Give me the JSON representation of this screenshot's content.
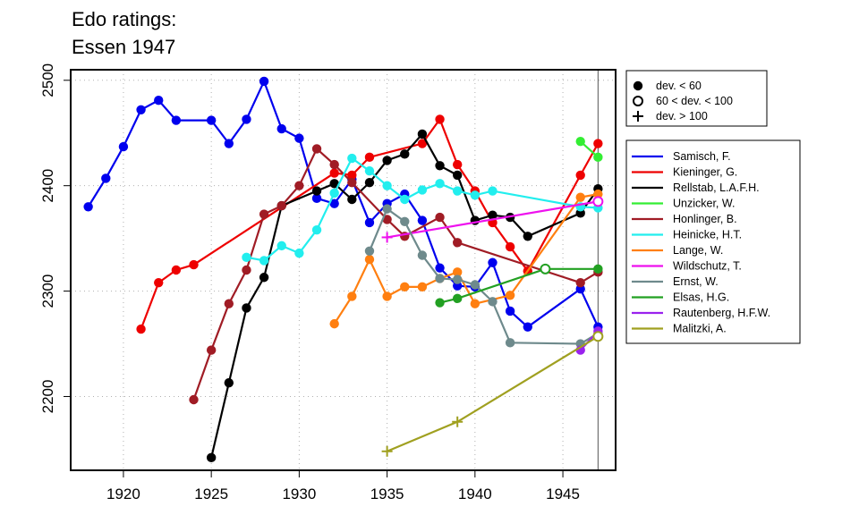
{
  "chart_data": {
    "type": "line",
    "title": "Edo ratings:",
    "subtitle": "Essen 1947",
    "xlabel": "",
    "ylabel": "",
    "xlim": [
      1917,
      1948
    ],
    "ylim": [
      2130,
      2510
    ],
    "x_ticks": [
      "1920",
      "1925",
      "1930",
      "1935",
      "1940",
      "1945"
    ],
    "y_ticks": [
      "2200",
      "2300",
      "2400",
      "2500"
    ],
    "grid": true,
    "marker_legend_position": "top-right outside",
    "series_legend_position": "right outside",
    "reference_line_x": 1947,
    "marker_legend": [
      {
        "label": "dev. < 60",
        "marker": "filled-circle"
      },
      {
        "label": "60 < dev. < 100",
        "marker": "open-circle"
      },
      {
        "label": "dev. > 100",
        "marker": "plus"
      }
    ],
    "series": [
      {
        "name": "Samisch, F.",
        "color": "#0000ee",
        "marker": "filled-circle",
        "x": [
          1918,
          1919,
          1920,
          1921,
          1922,
          1923,
          1925,
          1926,
          1927,
          1928,
          1929,
          1930,
          1931,
          1932,
          1933,
          1934,
          1935,
          1936,
          1937,
          1938,
          1939,
          1940,
          1941,
          1942,
          1943,
          1946,
          1947
        ],
        "y": [
          2380,
          2407,
          2437,
          2472,
          2481,
          2462,
          2462,
          2440,
          2463,
          2499,
          2454,
          2445,
          2388,
          2383,
          2406,
          2365,
          2383,
          2392,
          2367,
          2322,
          2305,
          2304,
          2327,
          2281,
          2266,
          2302,
          2266
        ]
      },
      {
        "name": "Kieninger, G.",
        "color": "#ee0000",
        "marker": "filled-circle",
        "x": [
          1921,
          1922,
          1923,
          1924,
          1932,
          1933,
          1934,
          1937,
          1938,
          1939,
          1940,
          1941,
          1942,
          1943,
          1946,
          1947
        ],
        "y": [
          2264,
          2308,
          2320,
          2325,
          2412,
          2410,
          2427,
          2440,
          2463,
          2420,
          2395,
          2365,
          2342,
          2319,
          2410,
          2440
        ]
      },
      {
        "name": "Rellstab, L.A.F.H.",
        "color": "#000000",
        "marker": "filled-circle",
        "x": [
          1925,
          1926,
          1927,
          1928,
          1929,
          1931,
          1932,
          1933,
          1934,
          1935,
          1936,
          1937,
          1938,
          1939,
          1940,
          1941,
          1942,
          1943,
          1946,
          1947
        ],
        "y": [
          2142,
          2213,
          2284,
          2313,
          2381,
          2395,
          2402,
          2387,
          2403,
          2424,
          2430,
          2449,
          2419,
          2410,
          2367,
          2372,
          2370,
          2352,
          2374,
          2397
        ]
      },
      {
        "name": "Unzicker, W.",
        "color": "#33ee33",
        "marker": "filled-circle",
        "x": [
          1946,
          1947
        ],
        "y": [
          2442,
          2427
        ]
      },
      {
        "name": "Honlinger, B.",
        "color": "#a01c25",
        "marker": "filled-circle",
        "x": [
          1924,
          1925,
          1926,
          1927,
          1928,
          1929,
          1930,
          1931,
          1932,
          1933,
          1935,
          1936,
          1938,
          1939,
          1946,
          1947
        ],
        "y": [
          2197,
          2244,
          2288,
          2320,
          2373,
          2381,
          2400,
          2435,
          2420,
          2403,
          2368,
          2352,
          2370,
          2346,
          2308,
          2318
        ]
      },
      {
        "name": "Heinicke, H.T.",
        "color": "#22eeee",
        "marker": "filled-circle",
        "x": [
          1927,
          1928,
          1929,
          1930,
          1931,
          1932,
          1933,
          1934,
          1935,
          1936,
          1937,
          1938,
          1939,
          1940,
          1941,
          1946,
          1947
        ],
        "y": [
          2332,
          2329,
          2343,
          2336,
          2358,
          2393,
          2426,
          2414,
          2400,
          2387,
          2396,
          2402,
          2395,
          2391,
          2395,
          2380,
          2379
        ]
      },
      {
        "name": "Lange, W.",
        "color": "#ff7f10",
        "marker": "filled-circle",
        "x": [
          1932,
          1933,
          1934,
          1935,
          1936,
          1937,
          1938,
          1939,
          1940,
          1942,
          1946,
          1947
        ],
        "y": [
          2269,
          2295,
          2330,
          2295,
          2304,
          2304,
          2312,
          2318,
          2288,
          2296,
          2389,
          2392
        ]
      },
      {
        "name": "Wildschutz, T.",
        "color": "#ee11ee",
        "marker": "plus",
        "x": [
          1935,
          1947
        ],
        "y": [
          2351,
          2385
        ],
        "last_marker": "open-circle"
      },
      {
        "name": "Ernst, W.",
        "color": "#6e8a8c",
        "marker": "filled-circle",
        "x": [
          1934,
          1935,
          1936,
          1937,
          1938,
          1939,
          1940,
          1941,
          1942,
          1946,
          1947
        ],
        "y": [
          2338,
          2378,
          2366,
          2334,
          2312,
          2311,
          2306,
          2290,
          2251,
          2250,
          2260
        ]
      },
      {
        "name": "Elsas, H.G.",
        "color": "#22a022",
        "marker": "filled-circle",
        "x": [
          1938,
          1939,
          1944,
          1947
        ],
        "y": [
          2289,
          2293,
          2321,
          2321
        ],
        "open_at": [
          1944
        ]
      },
      {
        "name": "Rautenberg, H.F.W.",
        "color": "#9a22ee",
        "marker": "filled-circle",
        "x": [
          1946,
          1947
        ],
        "y": [
          2244,
          2262
        ]
      },
      {
        "name": "Malitzki, A.",
        "color": "#a0a020",
        "marker": "plus",
        "x": [
          1935,
          1939,
          1947
        ],
        "y": [
          2148,
          2176,
          2257
        ],
        "last_marker": "open-circle"
      }
    ]
  }
}
